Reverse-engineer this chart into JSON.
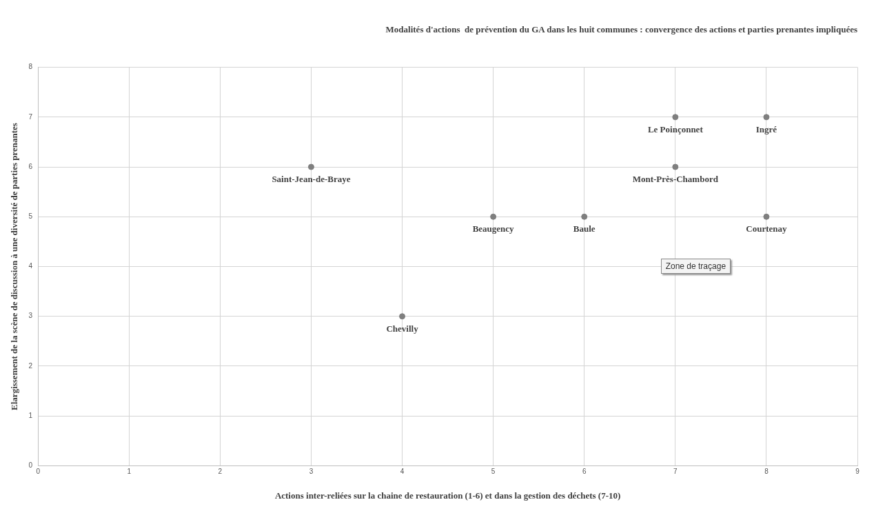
{
  "chart_data": {
    "type": "scatter",
    "title": "Modalités d'actions  de prévention du GA dans les huit communes : convergence des actions et parties prenantes impliquées",
    "xlabel": "Actions inter-reliées sur la chaine de restauration (1-6) et dans la gestion des déchets (7-10)",
    "ylabel": "Elargissement de la scène de discussion à une diversité de parties prenantes",
    "x": [
      3,
      4,
      5,
      6,
      7,
      7,
      8,
      8
    ],
    "series": [
      {
        "color": "#7f7f7f",
        "values": [
          6,
          3,
          5,
          5,
          7,
          6,
          7,
          5
        ]
      }
    ],
    "xlim": [
      0,
      9
    ],
    "xticks": [
      0,
      1,
      2,
      3,
      4,
      5,
      6,
      7,
      8,
      9
    ],
    "ylim": [
      0,
      8
    ],
    "yticks": [
      0,
      1,
      2,
      3,
      4,
      5,
      6,
      7,
      8
    ],
    "grid": true,
    "legend": false,
    "marker": "circle",
    "annotations": [
      {
        "text": "Saint-Jean-de-Braye",
        "x": 3,
        "y": 6
      },
      {
        "text": "Chevilly",
        "x": 4,
        "y": 3
      },
      {
        "text": "Beaugency",
        "x": 5,
        "y": 5
      },
      {
        "text": "Baule",
        "x": 6,
        "y": 5
      },
      {
        "text": "Le Poinçonnet",
        "x": 7,
        "y": 7
      },
      {
        "text": "Mont-Près-Chambord",
        "x": 7,
        "y": 6
      },
      {
        "text": "Ingré",
        "x": 8,
        "y": 7
      },
      {
        "text": "Courtenay",
        "x": 8,
        "y": 5
      },
      "Zone de traçage"
    ]
  }
}
